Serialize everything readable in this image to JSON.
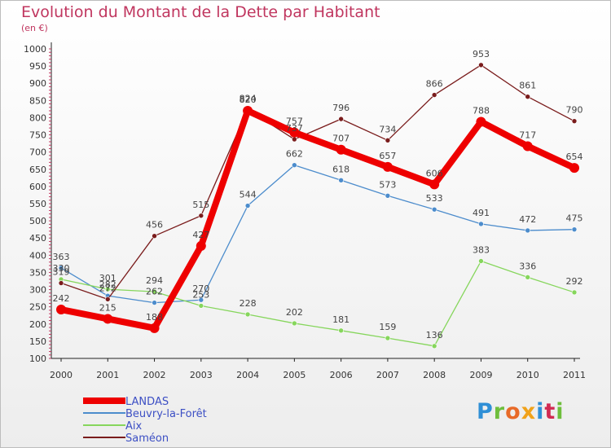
{
  "header": {
    "title": "Evolution du Montant de la Dette par Habitant",
    "unit": "(en €)"
  },
  "logo": {
    "text": "Proxiti",
    "letter_colors": [
      "#2f8fd6",
      "#6ebe3c",
      "#e86a28",
      "#f0a21a",
      "#2f8fd6",
      "#d12a52",
      "#6ebe3c"
    ]
  },
  "chart_data": {
    "type": "line",
    "x": [
      "2000",
      "2001",
      "2002",
      "2003",
      "2004",
      "2005",
      "2006",
      "2007",
      "2008",
      "2009",
      "2010",
      "2011"
    ],
    "ylim": [
      100,
      1000
    ],
    "yticks": [
      100,
      150,
      200,
      250,
      300,
      350,
      400,
      450,
      500,
      550,
      600,
      650,
      700,
      750,
      800,
      850,
      900,
      950,
      1000
    ],
    "grid": false,
    "legend_position": "bottom-left",
    "series": [
      {
        "name": "LANDAS",
        "color": "#ee0000",
        "emphasis": true,
        "values": [
          242,
          215,
          188,
          427,
          820,
          757,
          707,
          657,
          606,
          788,
          717,
          654
        ]
      },
      {
        "name": "Beuvry-la-Forêt",
        "color": "#4c8ccc",
        "values": [
          363,
          282,
          262,
          270,
          544,
          662,
          618,
          573,
          533,
          491,
          472,
          475
        ]
      },
      {
        "name": "Aix",
        "color": "#86d65c",
        "values": [
          330,
          301,
          294,
          253,
          228,
          202,
          181,
          159,
          136,
          383,
          336,
          292
        ]
      },
      {
        "name": "Saméon",
        "color": "#7a1c1c",
        "values": [
          319,
          272,
          456,
          515,
          824,
          737,
          796,
          734,
          866,
          953,
          861,
          790
        ]
      }
    ]
  }
}
